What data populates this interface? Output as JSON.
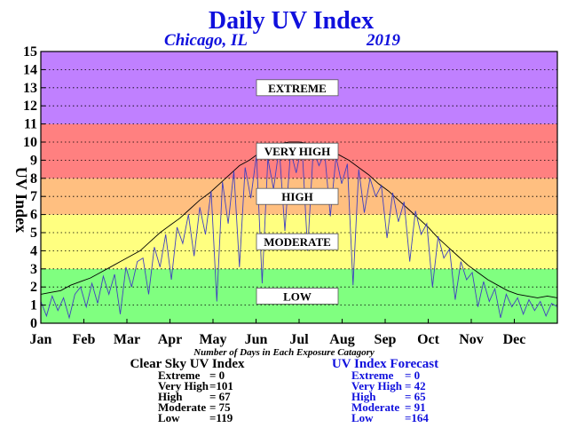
{
  "header": {
    "title": "Daily UV Index",
    "location": "Chicago, IL",
    "year": "2019"
  },
  "chart_data": {
    "type": "line",
    "ylabel": "UV Index",
    "ylim": [
      0,
      15
    ],
    "yticks": [
      0,
      1,
      2,
      3,
      4,
      5,
      6,
      7,
      8,
      9,
      10,
      11,
      12,
      13,
      14,
      15
    ],
    "months": [
      "Jan",
      "Feb",
      "Mar",
      "Apr",
      "May",
      "Jun",
      "Jul",
      "Aug",
      "Sep",
      "Oct",
      "Nov",
      "Dec"
    ],
    "grid": "horizontal-dotted",
    "bands": [
      {
        "label": "LOW",
        "from": 0,
        "to": 3,
        "color": "#80ff80"
      },
      {
        "label": "MODERATE",
        "from": 3,
        "to": 6,
        "color": "#ffff80"
      },
      {
        "label": "HIGH",
        "from": 6,
        "to": 8,
        "color": "#ffbf80"
      },
      {
        "label": "VERY HIGH",
        "from": 8,
        "to": 11,
        "color": "#ff8080"
      },
      {
        "label": "EXTREME",
        "from": 11,
        "to": 15,
        "color": "#c080ff"
      }
    ],
    "series": [
      {
        "name": "Clear Sky UV Index",
        "color": "#000000",
        "points": [
          [
            1,
            1.6
          ],
          [
            8,
            1.7
          ],
          [
            15,
            1.8
          ],
          [
            22,
            2.1
          ],
          [
            29,
            2.3
          ],
          [
            36,
            2.5
          ],
          [
            43,
            2.8
          ],
          [
            50,
            3.1
          ],
          [
            57,
            3.4
          ],
          [
            64,
            3.7
          ],
          [
            71,
            4.0
          ],
          [
            78,
            4.5
          ],
          [
            85,
            5.0
          ],
          [
            92,
            5.4
          ],
          [
            99,
            5.8
          ],
          [
            106,
            6.3
          ],
          [
            113,
            6.8
          ],
          [
            120,
            7.2
          ],
          [
            127,
            7.7
          ],
          [
            134,
            8.2
          ],
          [
            141,
            8.7
          ],
          [
            148,
            9.0
          ],
          [
            155,
            9.4
          ],
          [
            162,
            9.7
          ],
          [
            169,
            9.9
          ],
          [
            176,
            10.0
          ],
          [
            183,
            10.0
          ],
          [
            190,
            9.9
          ],
          [
            197,
            9.8
          ],
          [
            204,
            9.6
          ],
          [
            211,
            9.3
          ],
          [
            218,
            9.0
          ],
          [
            225,
            8.6
          ],
          [
            232,
            8.2
          ],
          [
            239,
            7.7
          ],
          [
            246,
            7.3
          ],
          [
            253,
            6.8
          ],
          [
            260,
            6.3
          ],
          [
            267,
            5.8
          ],
          [
            274,
            5.3
          ],
          [
            281,
            4.7
          ],
          [
            288,
            4.2
          ],
          [
            295,
            3.7
          ],
          [
            302,
            3.2
          ],
          [
            309,
            2.8
          ],
          [
            316,
            2.4
          ],
          [
            323,
            2.1
          ],
          [
            330,
            1.8
          ],
          [
            337,
            1.6
          ],
          [
            344,
            1.5
          ],
          [
            351,
            1.4
          ],
          [
            358,
            1.5
          ],
          [
            365,
            1.4
          ]
        ]
      },
      {
        "name": "UV Index Forecast",
        "color": "#4040c0",
        "points": [
          [
            1,
            1.2
          ],
          [
            5,
            0.4
          ],
          [
            9,
            1.5
          ],
          [
            13,
            0.7
          ],
          [
            17,
            1.4
          ],
          [
            21,
            0.3
          ],
          [
            25,
            1.6
          ],
          [
            29,
            2.0
          ],
          [
            33,
            0.9
          ],
          [
            37,
            2.2
          ],
          [
            41,
            1.1
          ],
          [
            45,
            2.6
          ],
          [
            49,
            1.6
          ],
          [
            53,
            2.7
          ],
          [
            57,
            0.5
          ],
          [
            61,
            3.1
          ],
          [
            65,
            2.0
          ],
          [
            69,
            3.4
          ],
          [
            73,
            3.6
          ],
          [
            77,
            1.6
          ],
          [
            81,
            4.2
          ],
          [
            85,
            3.1
          ],
          [
            89,
            4.9
          ],
          [
            93,
            2.4
          ],
          [
            97,
            5.3
          ],
          [
            101,
            4.4
          ],
          [
            105,
            6.0
          ],
          [
            109,
            3.7
          ],
          [
            113,
            6.4
          ],
          [
            117,
            4.9
          ],
          [
            121,
            7.3
          ],
          [
            125,
            1.2
          ],
          [
            129,
            7.8
          ],
          [
            133,
            5.5
          ],
          [
            137,
            8.4
          ],
          [
            141,
            3.1
          ],
          [
            145,
            8.6
          ],
          [
            149,
            6.9
          ],
          [
            153,
            9.3
          ],
          [
            157,
            2.2
          ],
          [
            161,
            9.1
          ],
          [
            165,
            7.4
          ],
          [
            169,
            9.7
          ],
          [
            173,
            5.1
          ],
          [
            177,
            9.5
          ],
          [
            181,
            8.3
          ],
          [
            185,
            9.9
          ],
          [
            189,
            4.0
          ],
          [
            193,
            9.6
          ],
          [
            197,
            8.7
          ],
          [
            201,
            9.4
          ],
          [
            205,
            5.9
          ],
          [
            209,
            9.2
          ],
          [
            213,
            7.7
          ],
          [
            217,
            8.8
          ],
          [
            221,
            2.1
          ],
          [
            225,
            8.5
          ],
          [
            229,
            6.1
          ],
          [
            233,
            8.0
          ],
          [
            237,
            7.0
          ],
          [
            241,
            7.6
          ],
          [
            245,
            4.7
          ],
          [
            249,
            7.2
          ],
          [
            253,
            5.6
          ],
          [
            257,
            6.7
          ],
          [
            261,
            3.4
          ],
          [
            265,
            6.2
          ],
          [
            269,
            4.9
          ],
          [
            273,
            5.5
          ],
          [
            277,
            2.0
          ],
          [
            281,
            4.8
          ],
          [
            285,
            3.6
          ],
          [
            289,
            4.1
          ],
          [
            293,
            1.3
          ],
          [
            297,
            3.4
          ],
          [
            301,
            2.4
          ],
          [
            305,
            2.8
          ],
          [
            309,
            0.9
          ],
          [
            313,
            2.3
          ],
          [
            317,
            1.2
          ],
          [
            321,
            1.9
          ],
          [
            325,
            0.3
          ],
          [
            329,
            1.6
          ],
          [
            333,
            0.9
          ],
          [
            337,
            1.4
          ],
          [
            341,
            0.5
          ],
          [
            345,
            1.3
          ],
          [
            349,
            0.7
          ],
          [
            353,
            1.2
          ],
          [
            357,
            0.4
          ],
          [
            361,
            1.1
          ],
          [
            365,
            0.9
          ]
        ]
      }
    ]
  },
  "stats": {
    "caption": "Number of Days in Each Exposure Catagory",
    "clear_sky": {
      "title": "Clear Sky UV Index",
      "rows": [
        {
          "label": "Extreme",
          "value": "= 0"
        },
        {
          "label": "Very High",
          "value": "=101"
        },
        {
          "label": "High",
          "value": "= 67"
        },
        {
          "label": "Moderate",
          "value": "= 75"
        },
        {
          "label": "Low",
          "value": "=119"
        }
      ]
    },
    "forecast": {
      "title": "UV Index Forecast",
      "rows": [
        {
          "label": "Extreme",
          "value": "= 0"
        },
        {
          "label": "Very High",
          "value": "= 42"
        },
        {
          "label": "High",
          "value": "= 65"
        },
        {
          "label": "Moderate",
          "value": "= 91"
        },
        {
          "label": "Low",
          "value": "=164"
        }
      ]
    }
  }
}
